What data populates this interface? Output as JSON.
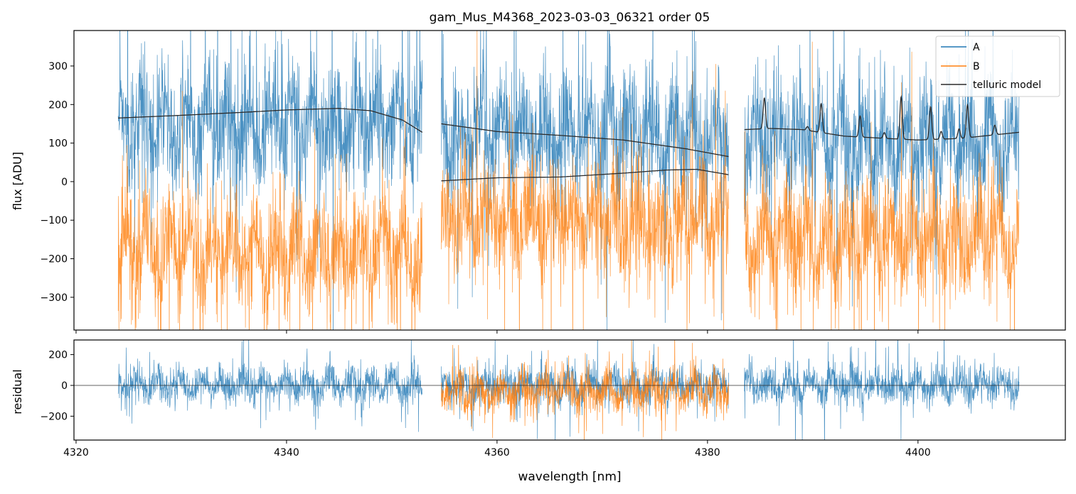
{
  "chart_data": [
    {
      "type": "line",
      "title": "gam_Mus_M4368_2023-03-03_06321  order 05",
      "xlabel": "",
      "ylabel": "flux [ADU]",
      "xlim": [
        4319.8,
        4414.0
      ],
      "ylim": [
        -385,
        392
      ],
      "yticks": [
        -300,
        -200,
        -100,
        0,
        100,
        200,
        300
      ],
      "yticklabels": [
        "−300",
        "−200",
        "−100",
        "0",
        "100",
        "200",
        "300"
      ],
      "legend": {
        "position": "top-right",
        "entries": [
          "A",
          "B",
          "telluric model"
        ]
      },
      "segments": [
        [
          4324.0,
          4352.9
        ],
        [
          4354.7,
          4382.0
        ],
        [
          4383.5,
          4409.6
        ]
      ],
      "series": [
        {
          "name": "A",
          "color": "#1f77b4",
          "mean_by_segment": [
            150,
            120,
            110
          ],
          "scatter": 130
        },
        {
          "name": "B",
          "color": "#ff7f0e",
          "mean_by_segment": [
            -180,
            -100,
            -150
          ],
          "scatter": 120
        }
      ],
      "telluric_model": {
        "color": "#2b2b2b",
        "upper_segment1": {
          "x": [
            4324,
            4330,
            4336,
            4340,
            4345,
            4348,
            4351,
            4352.9
          ],
          "y": [
            165,
            172,
            180,
            186,
            190,
            184,
            160,
            128
          ]
        },
        "upper_segment2": {
          "x": [
            4354.7,
            4360,
            4366,
            4372,
            4378,
            4382
          ],
          "y": [
            150,
            130,
            120,
            108,
            85,
            65
          ]
        },
        "lower_segment2": {
          "x": [
            4354.7,
            4360,
            4366,
            4372,
            4376,
            4379,
            4382
          ],
          "y": [
            2,
            10,
            12,
            22,
            30,
            32,
            18
          ]
        },
        "segment3": {
          "baseline": {
            "x": [
              4383.5,
              4386,
              4389,
              4393,
              4397,
              4400,
              4404,
              4409.6
            ],
            "y": [
              135,
              138,
              135,
              118,
              112,
              108,
              112,
              128
            ]
          },
          "lines": [
            {
              "center": 4385.4,
              "depth": 80
            },
            {
              "center": 4390.8,
              "depth": 75
            },
            {
              "center": 4394.5,
              "depth": 55
            },
            {
              "center": 4398.4,
              "depth": 110
            },
            {
              "center": 4401.2,
              "depth": 85
            },
            {
              "center": 4404.7,
              "depth": 85
            },
            {
              "center": 4407.3,
              "depth": 25
            },
            {
              "center": 4389.5,
              "depth": 10
            },
            {
              "center": 4396.8,
              "depth": 15
            },
            {
              "center": 4402.2,
              "depth": 20
            },
            {
              "center": 4403.9,
              "depth": 25
            }
          ]
        }
      }
    },
    {
      "type": "line",
      "title": "",
      "xlabel": "wavelength [nm]",
      "ylabel": "residual",
      "xlim": [
        4319.8,
        4414.0
      ],
      "ylim": [
        -355,
        295
      ],
      "xticks": [
        4320,
        4340,
        4360,
        4380,
        4400
      ],
      "xticklabels": [
        "4320",
        "4340",
        "4360",
        "4380",
        "4400"
      ],
      "yticks": [
        -200,
        0,
        200
      ],
      "yticklabels": [
        "−200",
        "0",
        "200"
      ],
      "zero_line": 0,
      "series": [
        {
          "name": "A",
          "color": "#1f77b4",
          "segments": [
            [
              4324.0,
              4352.9
            ],
            [
              4354.7,
              4382.0
            ],
            [
              4383.5,
              4409.6
            ]
          ],
          "mean": 0,
          "scatter": 95
        },
        {
          "name": "B",
          "color": "#ff7f0e",
          "segments": [
            [
              4354.7,
              4382.0
            ]
          ],
          "mean": -40,
          "scatter": 105
        }
      ]
    }
  ]
}
